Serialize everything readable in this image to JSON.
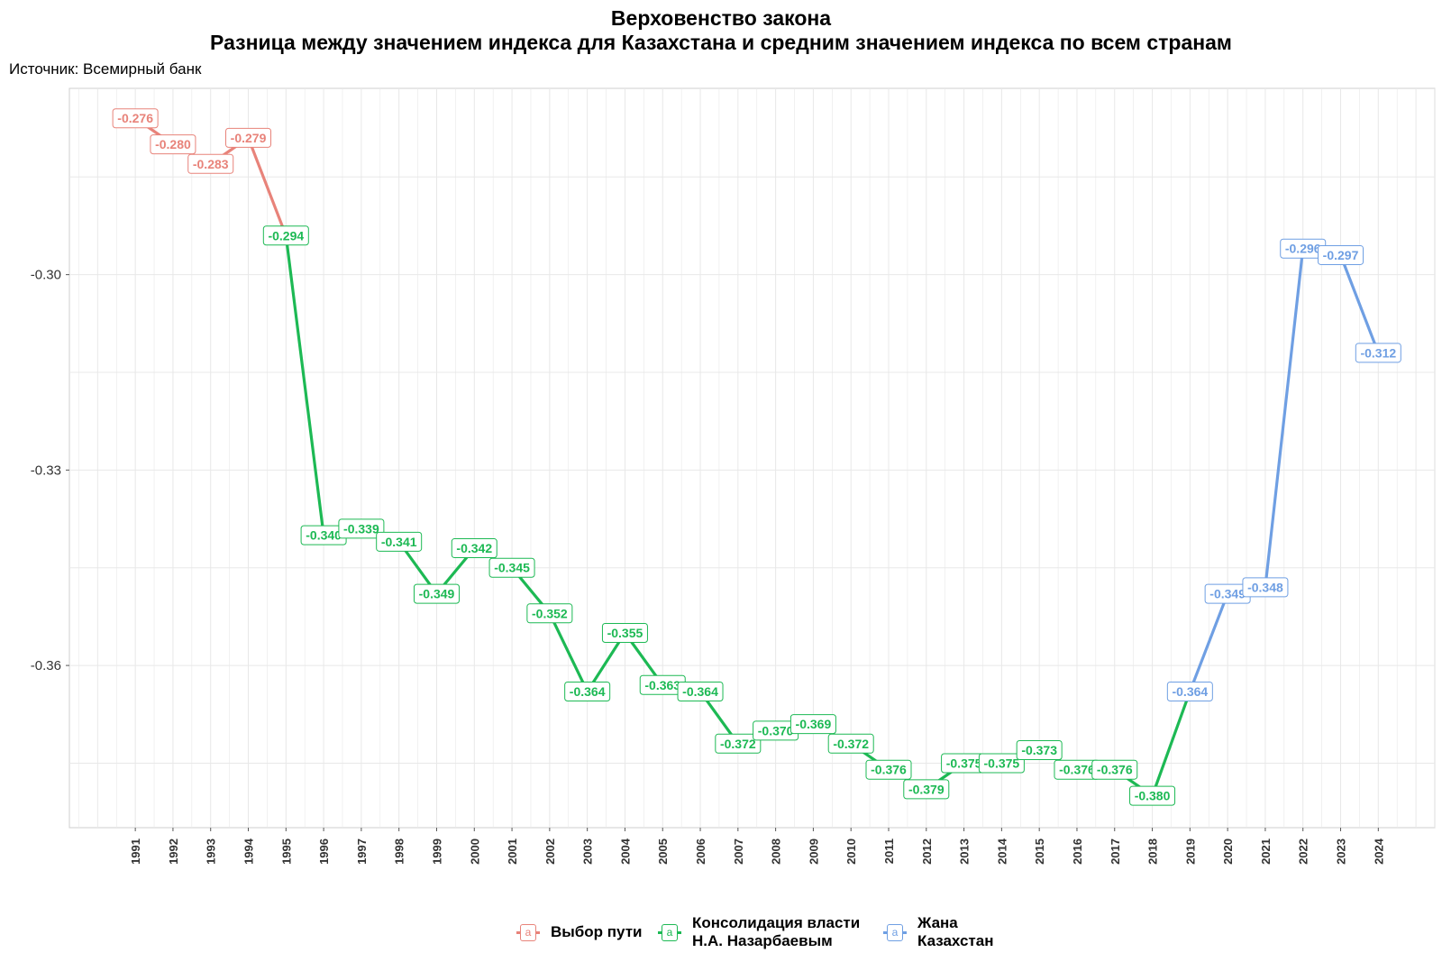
{
  "title": {
    "line1": "Верховенство закона",
    "line2": "Разница между значением индекса для Казахстана и средним значением индекса по всем странам"
  },
  "source": "Источник: Всемирный банк",
  "colors": {
    "path": "#e8837a",
    "consolidation": "#1db954",
    "new_kz": "#6f9fe3",
    "grid": "#e8e8e8",
    "panel_border": "#cfcfcf"
  },
  "legend": {
    "items": [
      {
        "key": "path",
        "label_line1": "Выбор пути",
        "label_line2": "",
        "glyph": "a"
      },
      {
        "key": "consolidation",
        "label_line1": "Консолидация власти",
        "label_line2": "Н.А. Назарбаевым",
        "glyph": "a"
      },
      {
        "key": "new_kz",
        "label_line1": "Жана",
        "label_line2": "Казахстан",
        "glyph": "a"
      }
    ]
  },
  "chart_data": {
    "type": "line",
    "title": "Верховенство закона",
    "subtitle": "Разница между значением индекса для Казахстана и средним значением индекса по всем странам",
    "xlabel": "",
    "ylabel": "",
    "x_ticks": [
      1991,
      1992,
      1993,
      1994,
      1995,
      1996,
      1997,
      1998,
      1999,
      2000,
      2001,
      2002,
      2003,
      2004,
      2005,
      2006,
      2007,
      2008,
      2009,
      2010,
      2011,
      2012,
      2013,
      2014,
      2015,
      2016,
      2017,
      2018,
      2019,
      2020,
      2021,
      2022,
      2023,
      2024
    ],
    "y_ticks": [
      -0.3,
      -0.33,
      -0.36
    ],
    "y_tick_labels": [
      "-0.30",
      "-0.33",
      "-0.36"
    ],
    "xlim": [
      1989.25,
      2025.5
    ],
    "ylim": [
      -0.3849,
      -0.2714
    ],
    "grid": true,
    "legend_position": "bottom",
    "series": [
      {
        "name": "Выбор пути",
        "color_key": "path",
        "points": [
          {
            "x": 1991,
            "y": -0.276,
            "label": "-0.276"
          },
          {
            "x": 1992,
            "y": -0.28,
            "label": "-0.280"
          },
          {
            "x": 1993,
            "y": -0.283,
            "label": "-0.283"
          },
          {
            "x": 1994,
            "y": -0.279,
            "label": "-0.279"
          },
          {
            "x": 1995,
            "y": -0.294,
            "label": ""
          }
        ]
      },
      {
        "name": "Консолидация власти Н.А. Назарбаевым",
        "color_key": "consolidation",
        "points": [
          {
            "x": 1995,
            "y": -0.294,
            "label": "-0.294"
          },
          {
            "x": 1996,
            "y": -0.34,
            "label": "-0.340"
          },
          {
            "x": 1997,
            "y": -0.339,
            "label": "-0.339"
          },
          {
            "x": 1998,
            "y": -0.341,
            "label": "-0.341"
          },
          {
            "x": 1999,
            "y": -0.349,
            "label": "-0.349"
          },
          {
            "x": 2000,
            "y": -0.342,
            "label": "-0.342"
          },
          {
            "x": 2001,
            "y": -0.345,
            "label": "-0.345"
          },
          {
            "x": 2002,
            "y": -0.352,
            "label": "-0.352"
          },
          {
            "x": 2003,
            "y": -0.364,
            "label": "-0.364"
          },
          {
            "x": 2004,
            "y": -0.355,
            "label": "-0.355"
          },
          {
            "x": 2005,
            "y": -0.363,
            "label": "-0.363"
          },
          {
            "x": 2006,
            "y": -0.364,
            "label": "-0.364"
          },
          {
            "x": 2007,
            "y": -0.372,
            "label": "-0.372"
          },
          {
            "x": 2008,
            "y": -0.37,
            "label": "-0.370"
          },
          {
            "x": 2009,
            "y": -0.369,
            "label": "-0.369"
          },
          {
            "x": 2010,
            "y": -0.372,
            "label": "-0.372"
          },
          {
            "x": 2011,
            "y": -0.376,
            "label": "-0.376"
          },
          {
            "x": 2012,
            "y": -0.379,
            "label": "-0.379"
          },
          {
            "x": 2013,
            "y": -0.375,
            "label": "-0.375"
          },
          {
            "x": 2014,
            "y": -0.375,
            "label": "-0.375"
          },
          {
            "x": 2015,
            "y": -0.373,
            "label": "-0.373"
          },
          {
            "x": 2016,
            "y": -0.376,
            "label": "-0.376"
          },
          {
            "x": 2017,
            "y": -0.376,
            "label": "-0.376"
          },
          {
            "x": 2018,
            "y": -0.38,
            "label": "-0.380"
          },
          {
            "x": 2019,
            "y": -0.364,
            "label": ""
          }
        ]
      },
      {
        "name": "Жана Казахстан",
        "color_key": "new_kz",
        "points": [
          {
            "x": 2019,
            "y": -0.364,
            "label": "-0.364"
          },
          {
            "x": 2020,
            "y": -0.349,
            "label": "-0.349"
          },
          {
            "x": 2021,
            "y": -0.348,
            "label": "-0.348"
          },
          {
            "x": 2022,
            "y": -0.296,
            "label": "-0.296"
          },
          {
            "x": 2023,
            "y": -0.297,
            "label": "-0.297"
          },
          {
            "x": 2024,
            "y": -0.312,
            "label": "-0.312"
          }
        ]
      }
    ]
  }
}
